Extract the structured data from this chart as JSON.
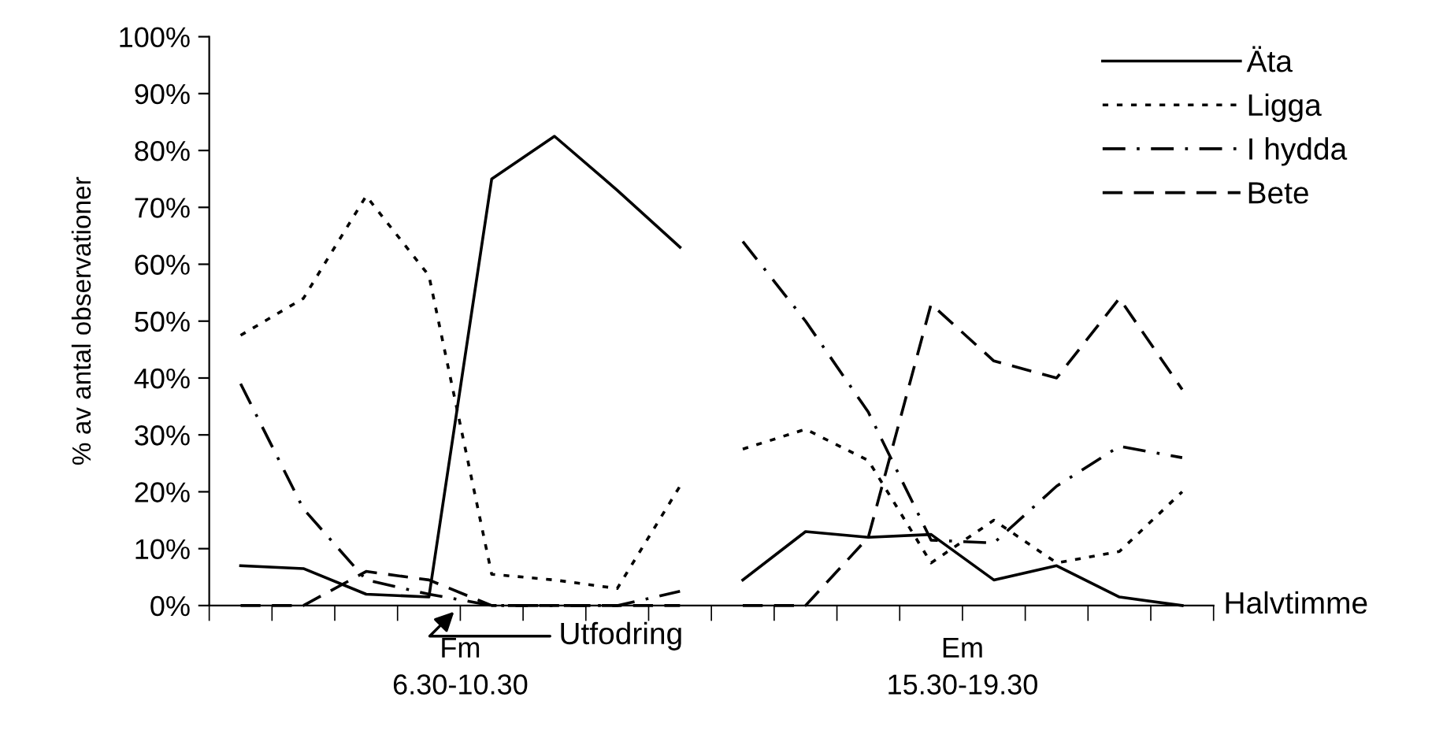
{
  "chart_data": {
    "type": "line",
    "ylabel": "% av antal observationer",
    "xlabel": "Halvtimme",
    "categories": [
      null,
      null,
      null,
      null,
      null,
      null,
      null,
      null,
      null,
      null,
      null,
      null,
      null,
      null,
      null,
      null
    ],
    "ylim": [
      0,
      100
    ],
    "yticks": [
      {
        "value": 0,
        "label": "0%"
      },
      {
        "value": 10,
        "label": "10%"
      },
      {
        "value": 20,
        "label": "20%"
      },
      {
        "value": 30,
        "label": "30%"
      },
      {
        "value": 40,
        "label": "40%"
      },
      {
        "value": 50,
        "label": "50%"
      },
      {
        "value": 60,
        "label": "60%"
      },
      {
        "value": 70,
        "label": "70%"
      },
      {
        "value": 80,
        "label": "80%"
      },
      {
        "value": 90,
        "label": "90%"
      },
      {
        "value": 100,
        "label": "100%"
      }
    ],
    "grid": false,
    "legend": "top right",
    "marker": "none",
    "series": [
      {
        "name": "Äta",
        "color": "#000000",
        "line_style": "solid",
        "values": [
          7,
          6.5,
          2,
          1.5,
          75,
          82.5,
          73,
          63,
          null,
          null,
          null,
          null,
          null,
          null,
          null,
          null
        ]
      },
      {
        "name": "Ligga",
        "color": "#000000",
        "line_style": "dotted",
        "values": [
          47.5,
          54,
          72,
          58,
          5.5,
          4.5,
          3,
          21,
          null,
          null,
          null,
          null,
          null,
          null,
          null,
          null
        ]
      },
      {
        "name": "I hydda",
        "color": "#000000",
        "line_style": "dashdot",
        "values": [
          39,
          17,
          4.5,
          2,
          0,
          0,
          0,
          2.5,
          null,
          null,
          null,
          null,
          null,
          null,
          null,
          null
        ]
      },
      {
        "name": "Bete",
        "color": "#000000",
        "line_style": "dashed",
        "values": [
          0,
          0,
          6,
          4.5,
          0,
          0,
          0,
          0,
          null,
          null,
          null,
          null,
          null,
          null,
          null,
          null
        ]
      },
      {
        "color": "#000000",
        "line_style": "solid",
        "values": [
          null,
          null,
          null,
          null,
          null,
          null,
          null,
          null,
          4.5,
          13,
          12,
          12.5,
          4.5,
          7,
          1.5,
          0
        ]
      },
      {
        "color": "#000000",
        "line_style": "dotted",
        "values": [
          null,
          null,
          null,
          null,
          null,
          null,
          null,
          null,
          27.5,
          31,
          25.5,
          7.5,
          15,
          7.5,
          9.5,
          20
        ]
      },
      {
        "color": "#000000",
        "line_style": "dashdot",
        "values": [
          null,
          null,
          null,
          null,
          null,
          null,
          null,
          null,
          64,
          50,
          34,
          11.5,
          11,
          21,
          28,
          26
        ]
      },
      {
        "color": "#000000",
        "line_style": "dashed",
        "values": [
          null,
          null,
          null,
          null,
          null,
          null,
          null,
          null,
          0,
          0,
          12,
          53,
          43,
          40,
          54,
          38
        ]
      }
    ],
    "annotations": [
      "Fm\n6.30-10.30",
      "Em\n15.30-19.30",
      "Utfodring"
    ]
  }
}
